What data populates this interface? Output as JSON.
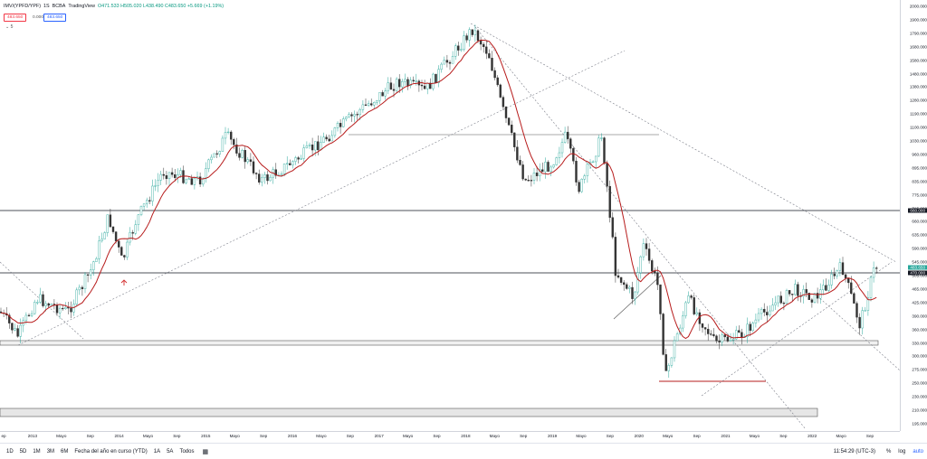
{
  "legend": {
    "symbol": "IMV/(YPFD/YPF)",
    "interval": "1S",
    "exchange": "BCBA",
    "source": "TradingView",
    "ohlc": "O471.533 H505.020 L438.490 C483.650 +5.669 (+1.19%)",
    "sell_price": "483.650",
    "spread": "0.000",
    "buy_price": "483.650",
    "ma_label": "5"
  },
  "price_axis": {
    "ticks": [
      "2000.000",
      "1900.000",
      "1790.000",
      "1680.000",
      "1580.000",
      "1480.000",
      "1380.000",
      "1280.000",
      "1190.000",
      "1100.000",
      "1030.000",
      "960.000",
      "895.000",
      "835.000",
      "775.000",
      "715.000",
      "660.000",
      "635.000",
      "590.000",
      "545.000",
      "505.000",
      "465.000",
      "425.000",
      "390.000",
      "360.000",
      "330.000",
      "300.000",
      "275.000",
      "250.000",
      "230.000",
      "210.000",
      "195.000"
    ],
    "last_price_label": "483.650",
    "level_labels": [
      "660.000",
      "470.000"
    ]
  },
  "time_axis": {
    "ticks": [
      "ep",
      "2013",
      "Mayo",
      "Sep",
      "2014",
      "Mayo",
      "Sep",
      "2015",
      "Mayo",
      "Sep",
      "2016",
      "Mayo",
      "Sep",
      "2017",
      "Mayo",
      "Sep",
      "2018",
      "Mayo",
      "Sep",
      "2019",
      "Mayo",
      "Sep",
      "2020",
      "Mayo",
      "Sep",
      "2021",
      "Mayo",
      "Sep",
      "2022",
      "Mayo",
      "Sep"
    ]
  },
  "bottom_bar": {
    "ranges": [
      "1D",
      "5D",
      "1M",
      "3M",
      "6M",
      "Fecha del año en curso (YTD)",
      "1A",
      "5A",
      "Todos"
    ],
    "time": "11:54:29 (UTC-3)",
    "percent": "%",
    "log": "log",
    "auto": "auto"
  },
  "colors": {
    "up": "#26a69a",
    "down": "#333333",
    "ma": "#b71c1c",
    "level": "#131722",
    "trend": "#787b86"
  }
}
